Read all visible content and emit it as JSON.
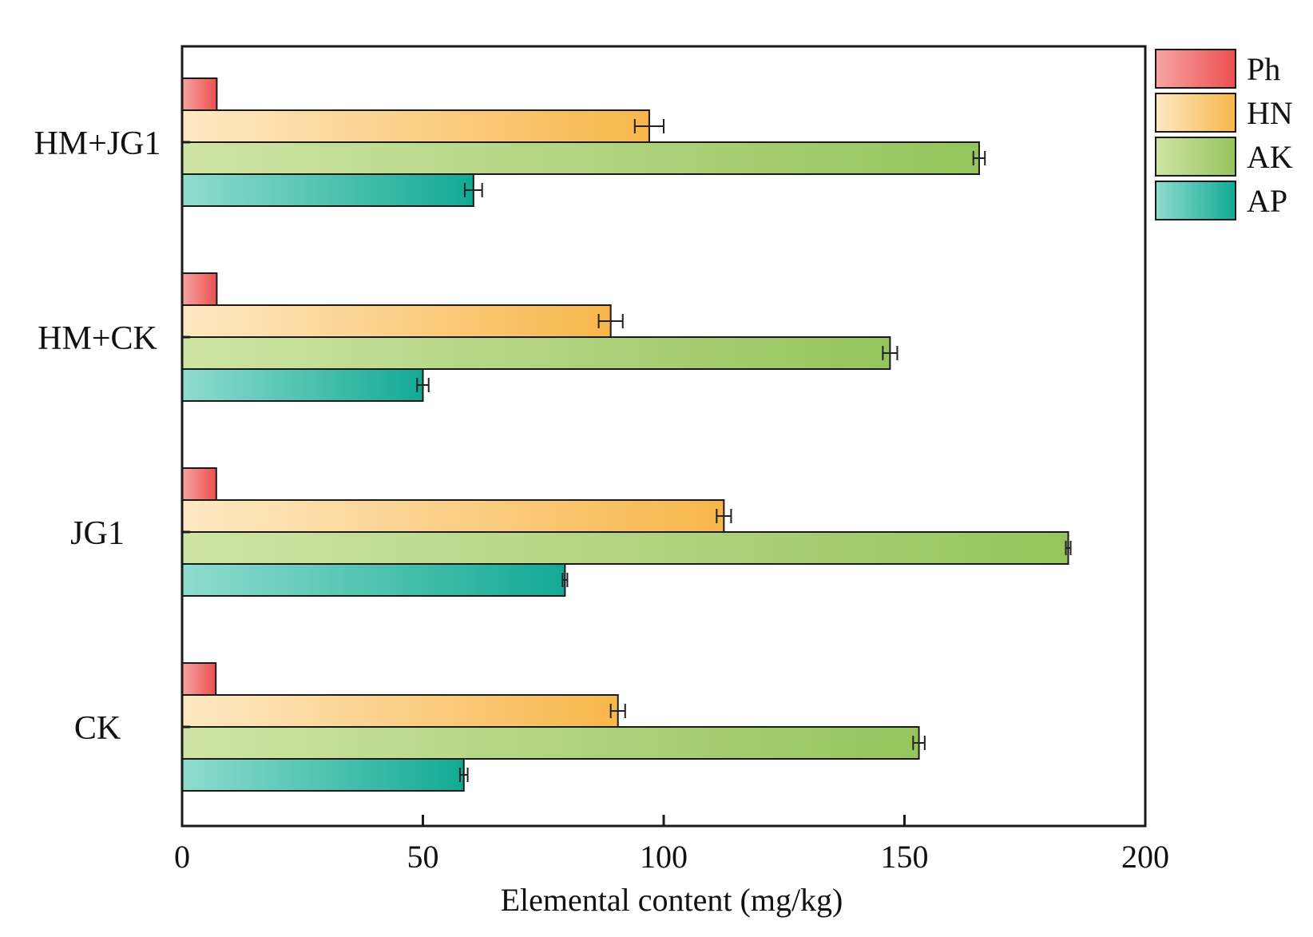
{
  "chart_data": {
    "type": "bar",
    "orientation": "horizontal",
    "title": "",
    "xlabel": "Elemental content (mg/kg)",
    "ylabel": "",
    "xlim": [
      0,
      200
    ],
    "xticks": [
      0,
      50,
      100,
      150,
      200
    ],
    "xtick_labels": [
      "0",
      "50",
      "100",
      "150",
      "200"
    ],
    "categories": [
      "HM+JG1",
      "HM+CK",
      "JG1",
      "CK"
    ],
    "grid": false,
    "legend_position": "top-right, outside plot",
    "series": [
      {
        "name": "Ph",
        "values": [
          7.2,
          7.2,
          7.1,
          7.0
        ],
        "errors": [
          0,
          0,
          0,
          0
        ],
        "color_light": "#f7a4a4",
        "color_dark": "#ec5050"
      },
      {
        "name": "HN",
        "values": [
          97,
          89,
          112.5,
          90.5
        ],
        "errors": [
          3.0,
          2.5,
          1.5,
          1.5
        ],
        "color_light": "#fde9c4",
        "color_dark": "#f8b64a"
      },
      {
        "name": "AK",
        "values": [
          165.5,
          147,
          184,
          153
        ],
        "errors": [
          1.2,
          1.5,
          0.5,
          1.2
        ],
        "color_light": "#cfe4a4",
        "color_dark": "#95c45c"
      },
      {
        "name": "AP",
        "values": [
          60.5,
          50,
          79.5,
          58.5
        ],
        "errors": [
          1.8,
          1.2,
          0.5,
          0.8
        ],
        "color_light": "#8fdcce",
        "color_dark": "#12aa94"
      }
    ]
  }
}
